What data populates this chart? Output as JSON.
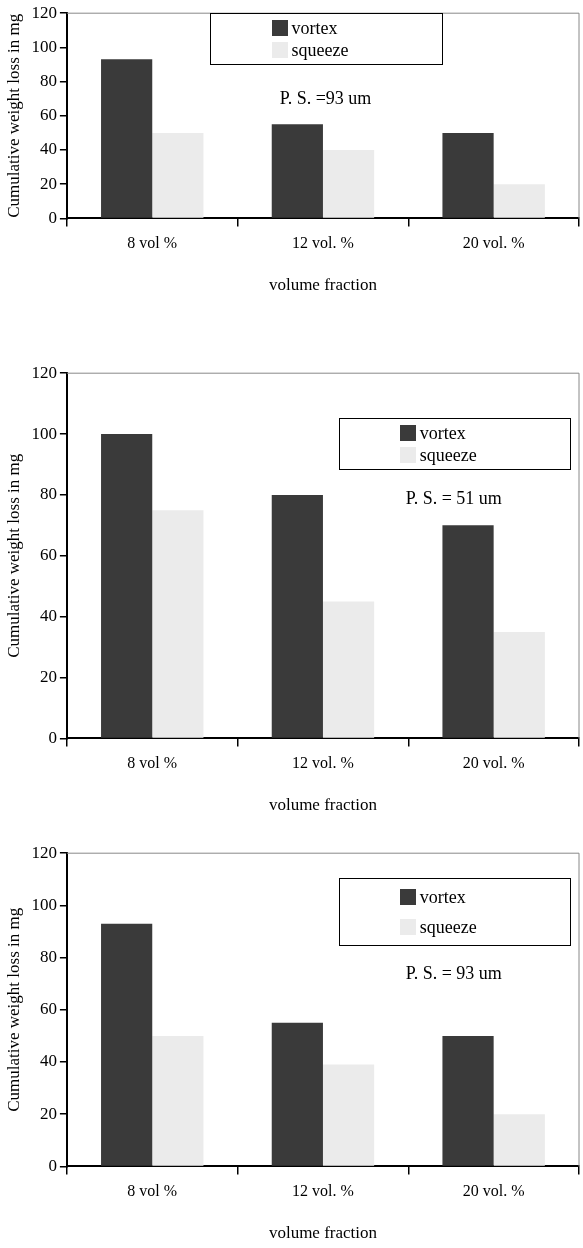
{
  "chart_data": [
    {
      "type": "bar",
      "xlabel": "volume fraction",
      "ylabel": "Cumulative weight loss in mg",
      "categories": [
        "8 vol %",
        "12 vol. %",
        "20 vol. %"
      ],
      "series": [
        {
          "name": "vortex",
          "color": "#3a3a3a",
          "values": [
            93,
            55,
            50
          ]
        },
        {
          "name": "squeeze",
          "color": "#ebebeb",
          "values": [
            50,
            40,
            20
          ]
        }
      ],
      "ylim": [
        0,
        120
      ],
      "yticks": [
        0,
        20,
        40,
        60,
        80,
        100,
        120
      ],
      "grid": false,
      "legend": "top",
      "annotations": [
        "P. S. =93 um"
      ]
    },
    {
      "type": "bar",
      "xlabel": "volume fraction",
      "ylabel": "Cumulative weight loss in mg",
      "categories": [
        "8 vol %",
        "12 vol. %",
        "20 vol. %"
      ],
      "series": [
        {
          "name": "vortex",
          "color": "#3a3a3a",
          "values": [
            100,
            80,
            70
          ]
        },
        {
          "name": "squeeze",
          "color": "#ebebeb",
          "values": [
            75,
            45,
            35
          ]
        }
      ],
      "ylim": [
        0,
        120
      ],
      "yticks": [
        0,
        20,
        40,
        60,
        80,
        100,
        120
      ],
      "grid": false,
      "legend": "top right",
      "annotations": [
        "P. S. = 51 um"
      ]
    },
    {
      "type": "bar",
      "xlabel": "volume fraction",
      "ylabel": "Cumulative weight loss in mg",
      "categories": [
        "8 vol %",
        "12 vol. %",
        "20 vol. %"
      ],
      "series": [
        {
          "name": "vortex",
          "color": "#3a3a3a",
          "values": [
            93,
            55,
            50
          ]
        },
        {
          "name": "squeeze",
          "color": "#ebebeb",
          "values": [
            50,
            39,
            20
          ]
        }
      ],
      "ylim": [
        0,
        120
      ],
      "yticks": [
        0,
        20,
        40,
        60,
        80,
        100,
        120
      ],
      "grid": false,
      "legend": "top right",
      "annotations": [
        "P. S. = 93 um"
      ]
    }
  ]
}
